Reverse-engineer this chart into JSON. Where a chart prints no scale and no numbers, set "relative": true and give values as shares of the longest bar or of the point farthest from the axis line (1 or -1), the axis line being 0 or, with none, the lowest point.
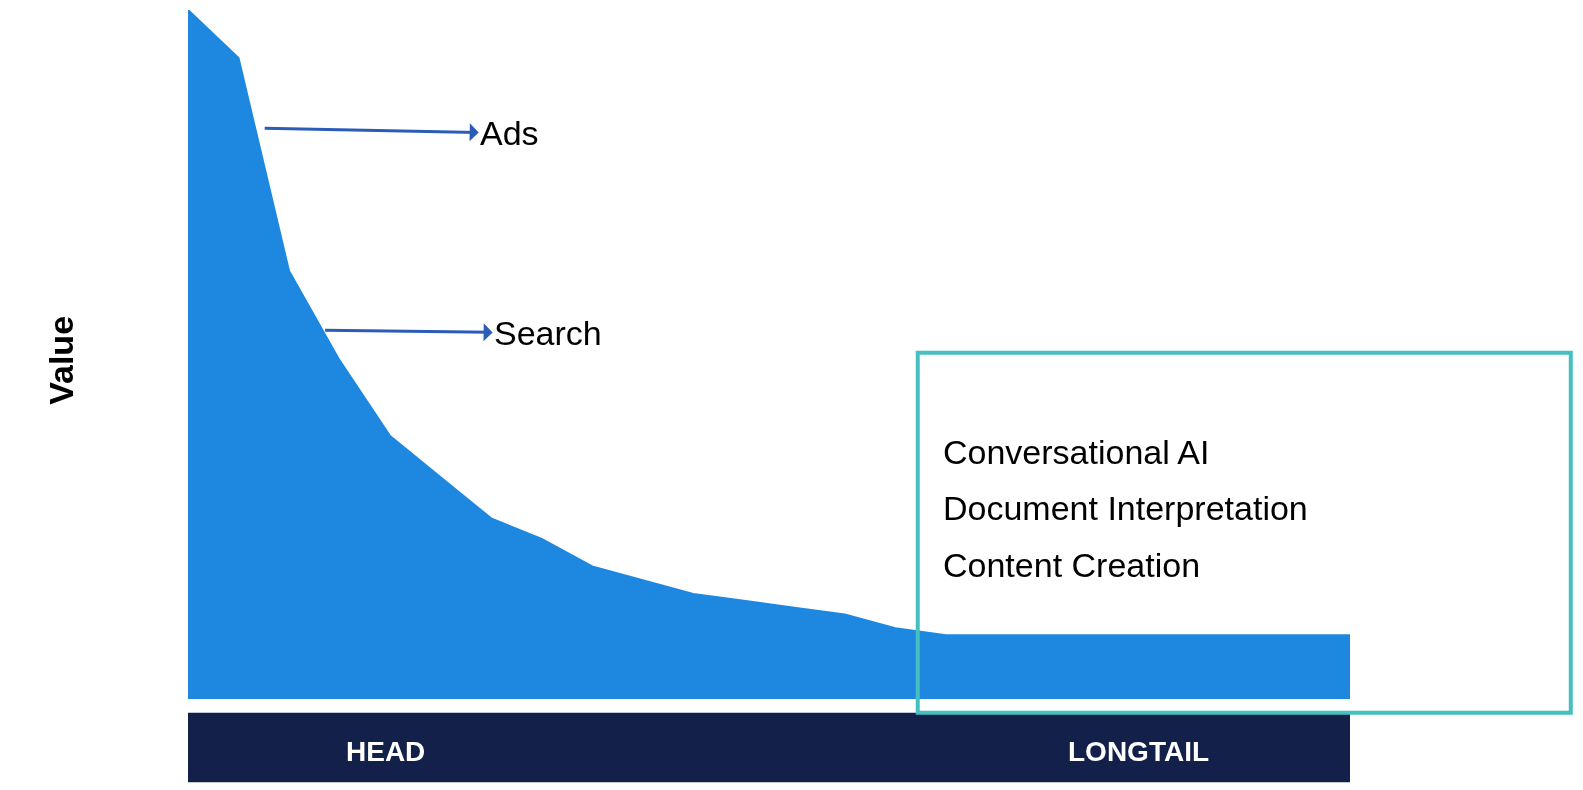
{
  "chart_data": {
    "type": "area",
    "relative": true,
    "ylabel": "Value",
    "categories": [
      null,
      null,
      null,
      null,
      null,
      null,
      null,
      null,
      null,
      null,
      null,
      null,
      null,
      null,
      null,
      null,
      null,
      null,
      null,
      null,
      null,
      null,
      null,
      null
    ],
    "series": [
      {
        "color": "#1e88e0",
        "values": [
          1.0,
          0.93,
          0.62,
          0.49,
          0.38,
          0.32,
          0.26,
          0.23,
          0.19,
          0.17,
          0.15,
          0.14,
          0.13,
          0.12,
          0.1,
          0.09,
          0.09,
          0.09,
          0.09,
          0.09,
          0.09,
          0.09,
          0.09,
          0.09
        ]
      }
    ],
    "annotations": [
      "Ads",
      "Search",
      "Conversational AI",
      "Document Interpretation",
      "Content Creation",
      "HEAD",
      "LONGTAIL"
    ]
  }
}
